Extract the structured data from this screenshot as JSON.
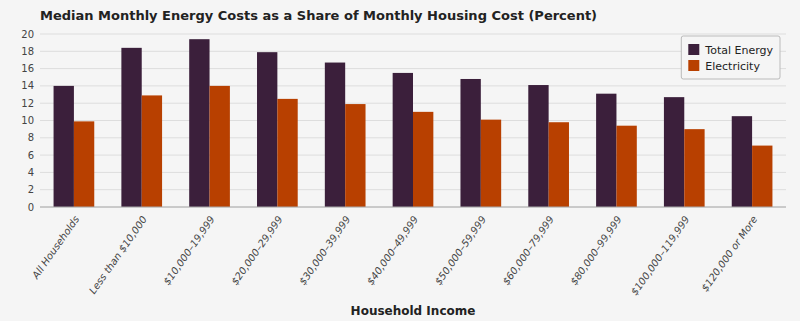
{
  "chart_data": {
    "type": "bar",
    "title": "Median Monthly Energy Costs as a Share of Monthly Housing Cost (Percent)",
    "xlabel": "Household Income",
    "categories": [
      "All Households",
      "Less than $10,000",
      "$10,000–19,999",
      "$20,000–29,999",
      "$30,000–39,999",
      "$40,000–49,999",
      "$50,000–59,999",
      "$60,000–79,999",
      "$80,000–99,999",
      "$100,000–119,999",
      "$120,000 or More"
    ],
    "series": [
      {
        "name": "Total Energy",
        "color": "#3b1f3b",
        "values": [
          14.0,
          18.4,
          19.4,
          17.9,
          16.7,
          15.5,
          14.8,
          14.1,
          13.1,
          12.7,
          10.5
        ]
      },
      {
        "name": "Electricity",
        "color": "#b84000",
        "values": [
          9.9,
          12.9,
          14.0,
          12.5,
          11.9,
          11.0,
          10.1,
          9.8,
          9.4,
          9.0,
          7.1
        ]
      }
    ],
    "ylim": [
      0,
      20
    ],
    "yticks": [
      0,
      2,
      4,
      6,
      8,
      10,
      12,
      14,
      16,
      18,
      20
    ],
    "grid": true,
    "legend": "upper right"
  }
}
